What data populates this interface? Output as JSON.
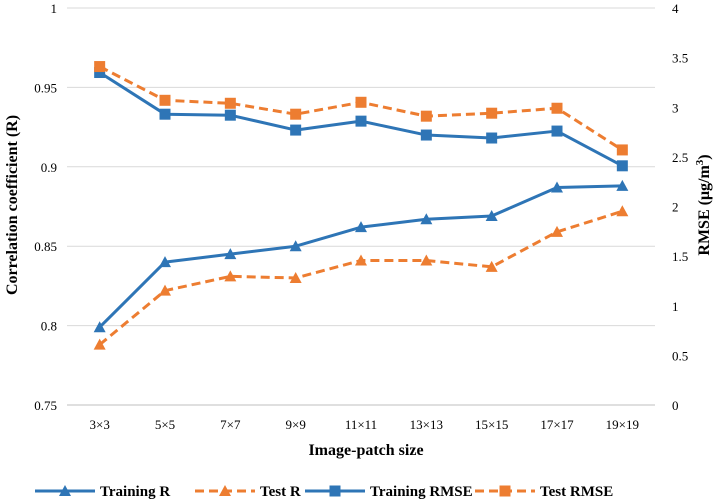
{
  "chart_data": {
    "type": "line",
    "xlabel": "Image-patch size",
    "ylabel": "Correlation coefficient (R)",
    "y2label_main": "RMSE (μg/m",
    "y2label_sup": "3",
    "y2label_close": ")",
    "categories": [
      "3×3",
      "5×5",
      "7×7",
      "9×9",
      "11×11",
      "13×13",
      "15×15",
      "17×17",
      "19×19"
    ],
    "ylim": [
      0.75,
      1
    ],
    "yticks": [
      "0.75",
      "0.8",
      "0.85",
      "0.9",
      "0.95",
      "1"
    ],
    "y2lim": [
      0,
      4
    ],
    "y2ticks": [
      "0",
      "0.5",
      "1",
      "1.5",
      "2",
      "2.5",
      "3",
      "3.5",
      "4"
    ],
    "grid": true,
    "legend_position": "bottom",
    "series": [
      {
        "name": "Training R",
        "axis": "left",
        "color": "#2e75b6",
        "dashed": false,
        "marker": "triangle",
        "values": [
          0.799,
          0.84,
          0.845,
          0.85,
          0.862,
          0.867,
          0.869,
          0.887,
          0.888
        ]
      },
      {
        "name": "Test R",
        "axis": "left",
        "color": "#ed7d31",
        "dashed": true,
        "marker": "triangle",
        "values": [
          0.788,
          0.822,
          0.831,
          0.83,
          0.841,
          0.841,
          0.837,
          0.859,
          0.872
        ]
      },
      {
        "name": "Training RMSE",
        "axis": "right",
        "color": "#2e75b6",
        "dashed": false,
        "marker": "square",
        "values": [
          3.35,
          2.93,
          2.92,
          2.77,
          2.86,
          2.72,
          2.69,
          2.76,
          2.41
        ]
      },
      {
        "name": "Test RMSE",
        "axis": "right",
        "color": "#ed7d31",
        "dashed": true,
        "marker": "square",
        "values": [
          3.41,
          3.07,
          3.04,
          2.93,
          3.05,
          2.91,
          2.94,
          2.99,
          2.57
        ]
      }
    ]
  }
}
